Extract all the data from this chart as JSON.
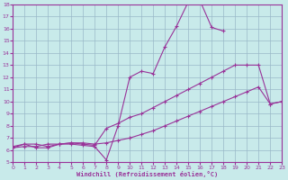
{
  "bg_color": "#c8eaea",
  "grid_color": "#9ab8c8",
  "line_color": "#993399",
  "xlabel": "Windchill (Refroidissement éolien,°C)",
  "xlim": [
    0,
    23
  ],
  "ylim": [
    5,
    18
  ],
  "xticks": [
    0,
    1,
    2,
    3,
    4,
    5,
    6,
    7,
    8,
    9,
    10,
    11,
    12,
    13,
    14,
    15,
    16,
    17,
    18,
    19,
    20,
    21,
    22,
    23
  ],
  "yticks": [
    5,
    6,
    7,
    8,
    9,
    10,
    11,
    12,
    13,
    14,
    15,
    16,
    17,
    18
  ],
  "series": [
    {
      "x": [
        0,
        1,
        2,
        3,
        4,
        5,
        6,
        7,
        8,
        9,
        10,
        11,
        12,
        13,
        14,
        15,
        16,
        17,
        18
      ],
      "y": [
        6.2,
        6.5,
        6.2,
        6.2,
        6.5,
        6.5,
        6.4,
        6.3,
        5.2,
        8.0,
        12.0,
        12.5,
        12.3,
        14.5,
        16.2,
        18.2,
        18.3,
        16.1,
        15.8
      ]
    },
    {
      "x": [
        0,
        1,
        2,
        3,
        4,
        5,
        6,
        7,
        8,
        9,
        10,
        11,
        12,
        13,
        14,
        15,
        16,
        17,
        18,
        19,
        20,
        21,
        22,
        23
      ],
      "y": [
        6.3,
        6.5,
        6.5,
        6.3,
        6.5,
        6.6,
        6.5,
        6.4,
        7.8,
        8.2,
        8.7,
        9.0,
        9.5,
        10.0,
        10.5,
        11.0,
        11.5,
        12.0,
        12.5,
        13.0,
        13.0,
        13.0,
        9.8,
        10.0
      ]
    },
    {
      "x": [
        0,
        1,
        2,
        3,
        4,
        5,
        6,
        7,
        8,
        9,
        10,
        11,
        12,
        13,
        14,
        15,
        16,
        17,
        18,
        19,
        20,
        21,
        22,
        23
      ],
      "y": [
        6.2,
        6.3,
        6.3,
        6.5,
        6.5,
        6.6,
        6.6,
        6.5,
        6.6,
        6.8,
        7.0,
        7.3,
        7.6,
        8.0,
        8.4,
        8.8,
        9.2,
        9.6,
        10.0,
        10.4,
        10.8,
        11.2,
        9.8,
        10.0
      ]
    }
  ]
}
